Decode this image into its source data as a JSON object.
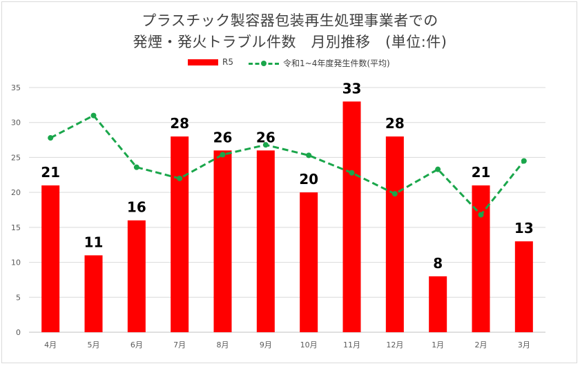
{
  "chart_data": {
    "type": "bar",
    "title_line1": "プラスチック製容器包装再生処理事業者での",
    "title_line2": "発煙・発火トラブル件数　月別推移　(単位:件)",
    "categories": [
      "4月",
      "5月",
      "6月",
      "7月",
      "8月",
      "9月",
      "10月",
      "11月",
      "12月",
      "1月",
      "2月",
      "3月"
    ],
    "series": [
      {
        "name": "R5",
        "type": "bar",
        "color": "#ff0000",
        "values": [
          21,
          11,
          16,
          28,
          26,
          26,
          20,
          33,
          28,
          8,
          21,
          13
        ],
        "data_labels": true
      },
      {
        "name": "令和1~4年度発生件数(平均)",
        "type": "line",
        "style": "dashed with markers",
        "color": "#1aa64b",
        "values": [
          27.8,
          31.0,
          23.6,
          22.0,
          25.4,
          26.8,
          25.3,
          22.8,
          19.8,
          23.3,
          16.8,
          24.5
        ]
      }
    ],
    "yticks": [
      0,
      5,
      10,
      15,
      20,
      25,
      30,
      35
    ],
    "ylim": [
      0,
      35
    ],
    "grid": true,
    "legend_position": "top"
  }
}
